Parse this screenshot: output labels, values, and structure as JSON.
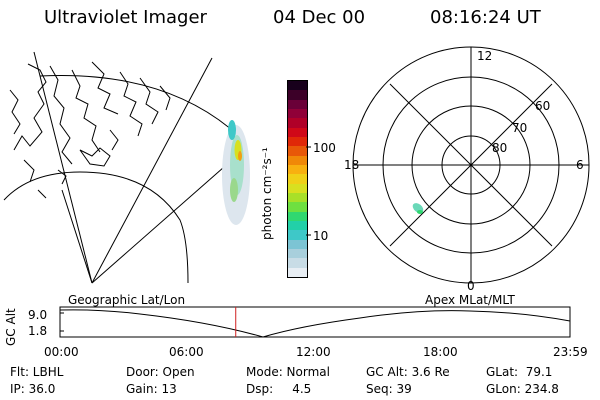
{
  "header": {
    "instrument": "Ultraviolet Imager",
    "date": "04 Dec 00",
    "time": "08:16:24 UT"
  },
  "colorbar": {
    "unit_label": "photon cm⁻²s⁻¹",
    "ticks": [
      "100",
      "10"
    ],
    "ticks_values": [
      100,
      10
    ],
    "colors": [
      "#e8eef4",
      "#c8dce6",
      "#a8cfdc",
      "#7cc4d4",
      "#3ec8c8",
      "#22d0a8",
      "#30d870",
      "#6ee040",
      "#a8e028",
      "#d8e020",
      "#f0d018",
      "#f8b010",
      "#f08808",
      "#e85808",
      "#e02808",
      "#d00818",
      "#b00028",
      "#900038",
      "#6a0038",
      "#3c0028",
      "#18001c"
    ]
  },
  "left_panel": {
    "label": "Geographic Lat/Lon"
  },
  "right_panel": {
    "label": "Apex  MLat/MLT",
    "mlt_labels": {
      "top": "12",
      "left": "18",
      "right": "6",
      "bottom": "0"
    },
    "lat_labels": [
      "60",
      "70",
      "80"
    ]
  },
  "timeline": {
    "ylabel": "GC Alt",
    "yticks": [
      "9.0",
      "1.8"
    ],
    "xticks": [
      "00:00",
      "06:00",
      "12:00",
      "18:00",
      "23:59"
    ],
    "current_marker_hours": 8.27,
    "marker_color": "#d02020"
  },
  "footer": {
    "flt": "Flt: LBHL",
    "ip": "IP: 36.0",
    "door": "Door: Open",
    "gain": "Gain: 13",
    "mode": "Mode: Normal",
    "dsp": "Dsp:     4.5",
    "gc_alt": "GC Alt: 3.6 Re",
    "seq": "Seq: 39",
    "glat": "GLat:  79.1",
    "glon": "GLon: 234.8"
  }
}
